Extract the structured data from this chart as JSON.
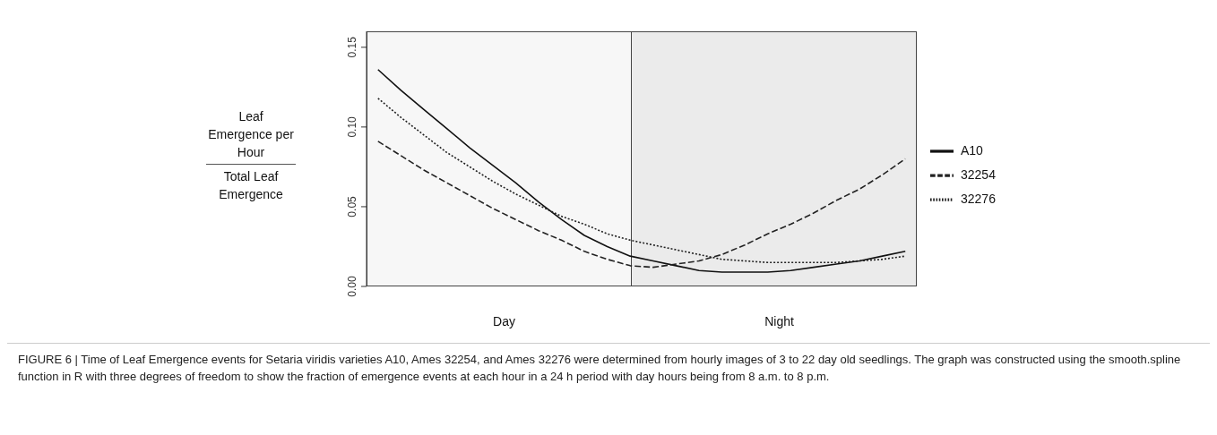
{
  "chart_data": {
    "type": "line",
    "ylabel": "Leaf Emergence per Hour\nTotal Leaf Emergence",
    "categories": [
      null,
      null,
      null,
      null,
      null,
      null,
      null,
      null,
      null,
      null,
      null,
      null,
      null,
      null,
      null,
      null,
      null,
      null,
      null,
      null,
      null,
      null,
      null,
      null
    ],
    "series": [
      {
        "name": "A10",
        "color": "#111111",
        "line_style": "solid",
        "values": [
          0.136,
          0.123,
          0.111,
          0.099,
          0.087,
          0.076,
          0.065,
          0.053,
          0.042,
          0.032,
          0.025,
          0.019,
          0.016,
          0.013,
          0.01,
          0.009,
          0.009,
          0.009,
          0.01,
          0.012,
          0.014,
          0.016,
          0.019,
          0.022
        ]
      },
      {
        "name": "32254",
        "color": "#222222",
        "line_style": "dashed",
        "values": [
          0.091,
          0.082,
          0.073,
          0.065,
          0.057,
          0.049,
          0.042,
          0.035,
          0.029,
          0.022,
          0.017,
          0.013,
          0.012,
          0.014,
          0.016,
          0.02,
          0.026,
          0.033,
          0.039,
          0.046,
          0.054,
          0.061,
          0.07,
          0.08
        ]
      },
      {
        "name": "32276",
        "color": "#222222",
        "line_style": "dotted",
        "values": [
          0.118,
          0.106,
          0.095,
          0.084,
          0.075,
          0.066,
          0.058,
          0.051,
          0.044,
          0.039,
          0.033,
          0.029,
          0.026,
          0.023,
          0.02,
          0.017,
          0.016,
          0.015,
          0.015,
          0.015,
          0.015,
          0.016,
          0.017,
          0.019
        ]
      }
    ],
    "ylim": [
      0,
      0.16
    ],
    "yticks": [
      {
        "value": 0,
        "label": "0.00"
      },
      {
        "value": 0.05,
        "label": "0.05"
      },
      {
        "value": 0.1,
        "label": "0.10"
      },
      {
        "value": 0.15,
        "label": "0.15"
      }
    ],
    "tick_labels": "y",
    "grid": false,
    "legend": "right",
    "marker": "none",
    "annotations": [
      "Day",
      "Night",
      "FIGURE 6 | Time of Leaf Emergence events for Setaria viridis varieties A10, Ames 32254, and Ames 32276 were determined from hourly images of 3 to 22 day old seedlings. The graph was constructed using the smooth.spline function in R with three degrees of freedom to show the fraction of emergence events at each hour in a 24 h period with day hours being from 8 a.m. to 8 p.m."
    ]
  }
}
